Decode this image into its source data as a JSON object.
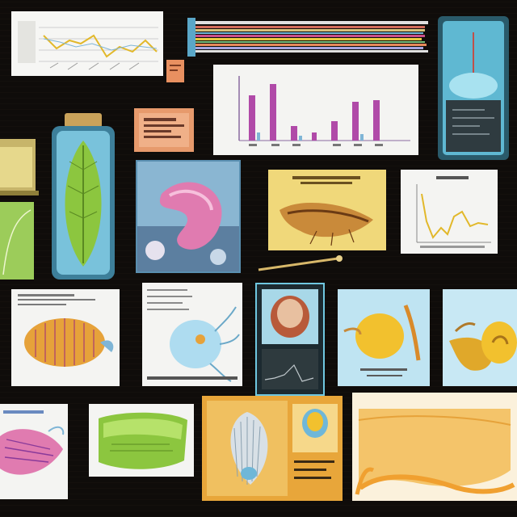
{
  "colors": {
    "board_background": "#0f0c0a",
    "paper": "#f4f4f2",
    "chart_line_gold": "#e2b82a",
    "bar_magenta": "#b04aa8",
    "jar_cyan": "#6fc7e0",
    "leaf_green": "#8cc63f",
    "specimen_pink": "#e07bb0",
    "specimen_yellow": "#f2c12e",
    "specimen_orange": "#f0a030"
  },
  "tiles": [
    {
      "id": "line-chart-card",
      "icon": "line-chart-icon"
    },
    {
      "id": "striped-ribbons",
      "icon": "ribbon-icon"
    },
    {
      "id": "cyan-jar-right",
      "icon": "jar-icon"
    },
    {
      "id": "bar-chart-card",
      "icon": "bar-chart-icon"
    },
    {
      "id": "small-orange-note",
      "icon": "note-icon"
    },
    {
      "id": "salmon-label-card",
      "icon": "label-icon"
    },
    {
      "id": "green-leaf-jar",
      "icon": "leaf-jar-icon"
    },
    {
      "id": "pink-organ-photo",
      "icon": "organ-icon"
    },
    {
      "id": "yellow-specimen-card",
      "icon": "specimen-icon"
    },
    {
      "id": "small-line-chart",
      "icon": "line-chart-icon"
    },
    {
      "id": "shell-diagram",
      "icon": "shell-icon"
    },
    {
      "id": "blue-creature-diagram",
      "icon": "creature-icon"
    },
    {
      "id": "orb-panel",
      "icon": "orb-icon"
    },
    {
      "id": "yellow-shell-card",
      "icon": "shell-icon"
    },
    {
      "id": "gold-snail-card",
      "icon": "snail-icon"
    },
    {
      "id": "pink-fish-sketch",
      "icon": "fish-icon"
    },
    {
      "id": "green-slab",
      "icon": "slab-icon"
    },
    {
      "id": "comb-specimen-card",
      "icon": "comb-icon"
    },
    {
      "id": "orange-wave-card",
      "icon": "wave-icon"
    }
  ]
}
